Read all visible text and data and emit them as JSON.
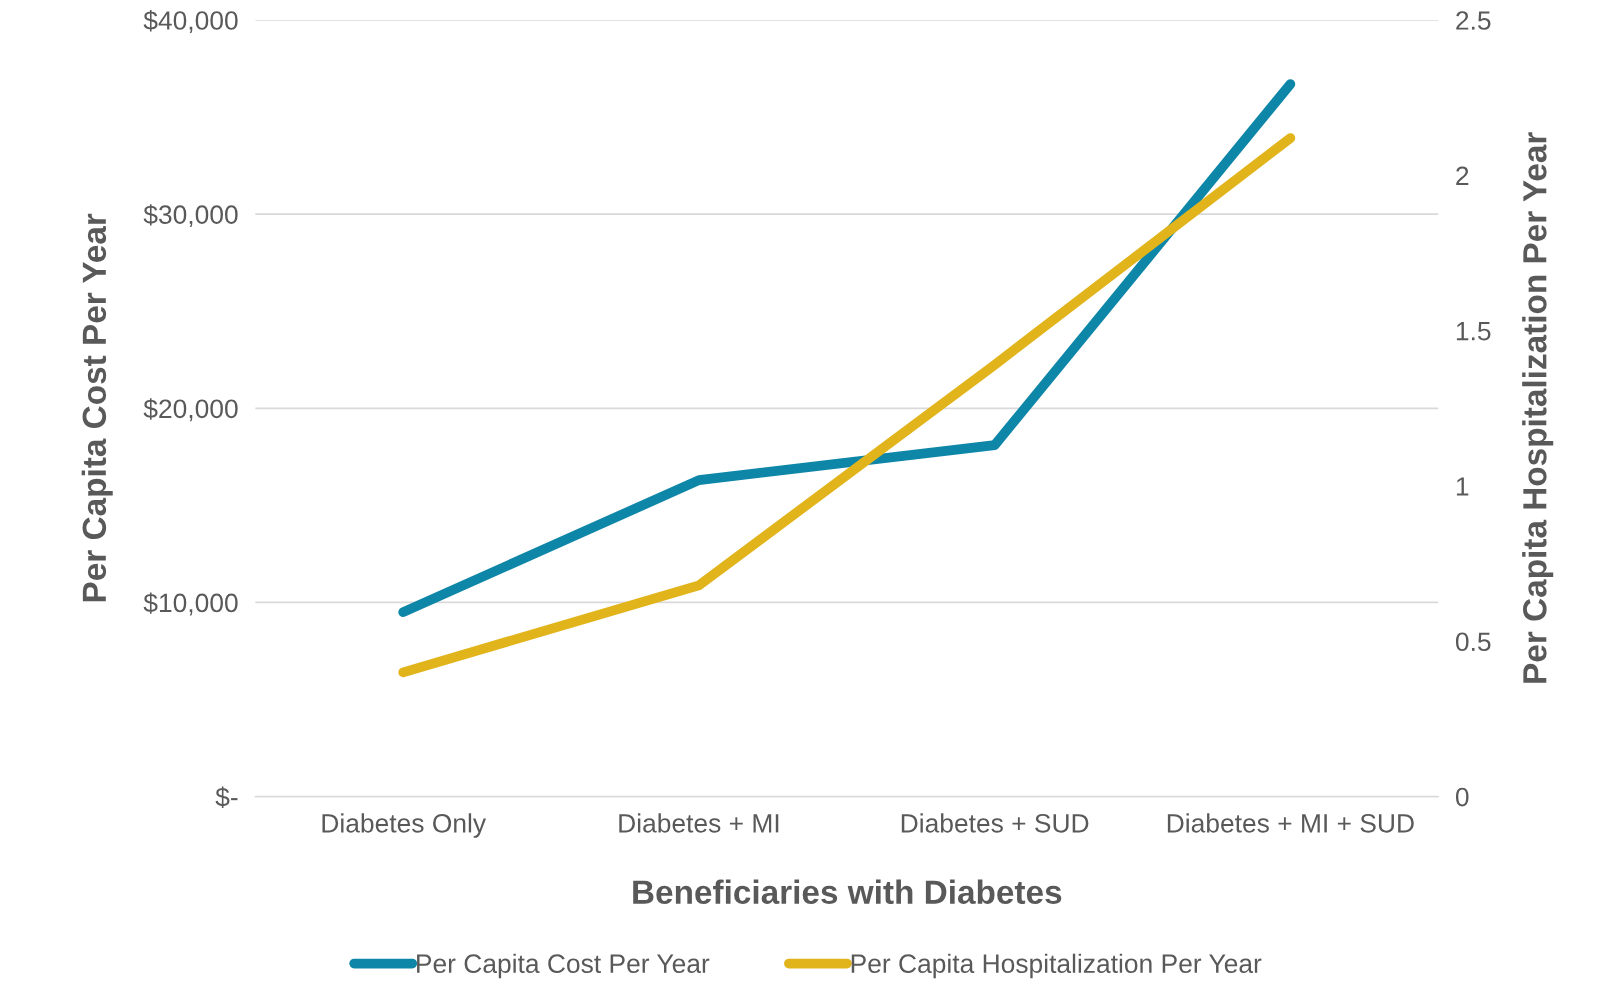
{
  "chart_data": {
    "type": "line",
    "xlabel": "Beneficiaries with Diabetes",
    "ylabel": "Per Capita Cost Per Year",
    "y2label": "Per Capita Hospitalization Per Year",
    "categories": [
      "Diabetes Only",
      "Diabetes + MI",
      "Diabetes + SUD",
      "Diabetes + MI + SUD"
    ],
    "series": [
      {
        "name": "Per Capita Cost Per Year",
        "color": "#0e86a8",
        "values": [
          9500,
          16300,
          18100,
          36700
        ]
      },
      {
        "name": "Per Capita Hospitalization Per Year",
        "color": "#e2b41c",
        "values": [
          0.4,
          0.68,
          1.39,
          2.12
        ],
        "axis": "y2"
      }
    ],
    "ylim": [
      0,
      40000
    ],
    "yticks": [
      {
        "value": 0,
        "label": "$-"
      },
      {
        "value": 10000,
        "label": "$10,000"
      },
      {
        "value": 20000,
        "label": "$20,000"
      },
      {
        "value": 30000,
        "label": "$30,000"
      },
      {
        "value": 40000,
        "label": "$40,000"
      }
    ],
    "y2lim": [
      0,
      2.5
    ],
    "y2ticks": [
      0,
      {
        "value": 0.5,
        "label": "0.5"
      },
      1,
      {
        "value": 1.5,
        "label": "1.5"
      },
      2,
      {
        "value": 2.5,
        "label": "2.5"
      }
    ],
    "grid": "y",
    "legend": "bottom",
    "marker": "none",
    "line_style": "solid"
  }
}
